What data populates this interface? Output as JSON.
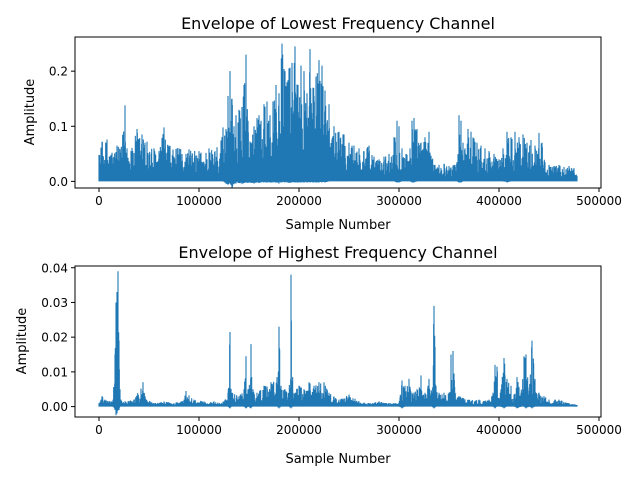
{
  "chart_data": [
    {
      "type": "line",
      "title": "Envelope of Lowest Frequency Channel",
      "xlabel": "Sample Number",
      "ylabel": "Amplitude",
      "xlim": [
        -24000,
        502000
      ],
      "ylim": [
        -0.012,
        0.262
      ],
      "xticks": [
        0,
        100000,
        200000,
        300000,
        400000,
        500000
      ],
      "xtick_labels": [
        "0",
        "100000",
        "200000",
        "300000",
        "400000",
        "500000"
      ],
      "yticks": [
        0.0,
        0.1,
        0.2
      ],
      "ytick_labels": [
        "0.0",
        "0.1",
        "0.2"
      ],
      "grid": false,
      "color": "#1f77b4",
      "series": [
        {
          "x": [
            0,
            3000,
            8000,
            13000,
            18000,
            22000,
            26000,
            28000,
            32000,
            38000,
            43000,
            48000,
            55000,
            60000,
            65000,
            70000,
            80000,
            90000,
            100000,
            110000,
            118000,
            124000,
            127000,
            129000,
            131000,
            133000,
            135000,
            137000,
            140000,
            143000,
            145000,
            147000,
            149000,
            152000,
            155000,
            158000,
            160000,
            162000,
            165000,
            168000,
            171000,
            174000,
            177000,
            180000,
            183000,
            186000,
            188000,
            190000,
            193000,
            196000,
            199000,
            202000,
            205000,
            208000,
            211000,
            214000,
            217000,
            220000,
            223000,
            226000,
            230000,
            235000,
            240000,
            245000,
            250000,
            255000,
            260000,
            265000,
            270000,
            275000,
            280000,
            285000,
            290000,
            295000,
            298000,
            300000,
            303000,
            307000,
            311000,
            313000,
            315000,
            318000,
            322000,
            326000,
            330000,
            335000,
            340000,
            345000,
            350000,
            355000,
            358000,
            360000,
            362000,
            364000,
            366000,
            369000,
            372000,
            375000,
            378000,
            382000,
            386000,
            390000,
            395000,
            400000,
            404000,
            408000,
            412000,
            416000,
            420000,
            424000,
            428000,
            432000,
            436000,
            440000,
            443000,
            446000,
            450000,
            455000,
            460000,
            465000,
            470000,
            475000,
            478000
          ],
          "upper": [
            0.048,
            0.072,
            0.076,
            0.052,
            0.065,
            0.058,
            0.138,
            0.06,
            0.055,
            0.095,
            0.085,
            0.072,
            0.06,
            0.055,
            0.098,
            0.065,
            0.06,
            0.058,
            0.055,
            0.06,
            0.062,
            0.098,
            0.095,
            0.155,
            0.2,
            0.15,
            0.1,
            0.12,
            0.13,
            0.135,
            0.175,
            0.23,
            0.11,
            0.07,
            0.1,
            0.115,
            0.12,
            0.11,
            0.14,
            0.145,
            0.12,
            0.145,
            0.175,
            0.16,
            0.25,
            0.2,
            0.18,
            0.205,
            0.215,
            0.245,
            0.175,
            0.21,
            0.2,
            0.16,
            0.24,
            0.17,
            0.19,
            0.22,
            0.21,
            0.165,
            0.14,
            0.1,
            0.09,
            0.085,
            0.07,
            0.065,
            0.06,
            0.055,
            0.065,
            0.045,
            0.04,
            0.045,
            0.05,
            0.08,
            0.11,
            0.1,
            0.06,
            0.05,
            0.06,
            0.11,
            0.115,
            0.095,
            0.07,
            0.08,
            0.09,
            0.03,
            0.03,
            0.032,
            0.028,
            0.03,
            0.035,
            0.12,
            0.11,
            0.07,
            0.06,
            0.095,
            0.09,
            0.078,
            0.07,
            0.065,
            0.06,
            0.055,
            0.05,
            0.04,
            0.06,
            0.09,
            0.08,
            0.09,
            0.08,
            0.085,
            0.07,
            0.075,
            0.065,
            0.088,
            0.07,
            0.035,
            0.03,
            0.028,
            0.03,
            0.026,
            0.028,
            0.024,
            0.01
          ],
          "lower": [
            0.0,
            0.0,
            0.0,
            0.0,
            0.0,
            0.0,
            0.0,
            0.0,
            0.0,
            0.0,
            0.0,
            0.0,
            0.0,
            0.0,
            0.0,
            0.0,
            0.0,
            0.0,
            0.0,
            0.0,
            0.0,
            0.0,
            -0.004,
            -0.006,
            -0.003,
            -0.012,
            -0.005,
            -0.004,
            -0.003,
            -0.005,
            -0.003,
            -0.002,
            -0.003,
            -0.003,
            -0.004,
            -0.002,
            -0.003,
            -0.002,
            -0.002,
            -0.002,
            -0.002,
            -0.002,
            -0.002,
            -0.004,
            -0.002,
            -0.002,
            -0.002,
            -0.003,
            -0.002,
            -0.002,
            -0.002,
            -0.002,
            -0.002,
            -0.002,
            -0.002,
            -0.002,
            -0.002,
            -0.002,
            -0.002,
            -0.002,
            0.0,
            0.0,
            0.0,
            0.0,
            0.0,
            0.0,
            0.0,
            0.0,
            0.0,
            0.0,
            0.0,
            0.0,
            0.0,
            0.0,
            -0.002,
            -0.002,
            0.0,
            0.0,
            0.0,
            -0.002,
            -0.002,
            0.0,
            0.0,
            0.0,
            0.0,
            0.0,
            0.0,
            0.0,
            0.0,
            0.0,
            0.0,
            -0.002,
            -0.002,
            0.0,
            0.0,
            0.0,
            0.0,
            0.0,
            0.0,
            0.0,
            0.0,
            0.0,
            0.0,
            0.0,
            0.0,
            -0.002,
            0.0,
            0.0,
            0.0,
            0.0,
            0.0,
            0.0,
            0.0,
            0.0,
            0.0,
            0.0,
            0.0,
            0.0,
            0.0,
            0.0,
            0.0,
            0.0,
            0.0
          ]
        }
      ]
    },
    {
      "type": "line",
      "title": "Envelope of Highest Frequency Channel",
      "xlabel": "Sample Number",
      "ylabel": "Amplitude",
      "xlim": [
        -24000,
        502000
      ],
      "ylim": [
        -0.003,
        0.0405
      ],
      "xticks": [
        0,
        100000,
        200000,
        300000,
        400000,
        500000
      ],
      "xtick_labels": [
        "0",
        "100000",
        "200000",
        "300000",
        "400000",
        "500000"
      ],
      "yticks": [
        0.0,
        0.01,
        0.02,
        0.03,
        0.04
      ],
      "ytick_labels": [
        "0.00",
        "0.01",
        "0.02",
        "0.03",
        "0.04"
      ],
      "grid": false,
      "color": "#1f77b4",
      "series": [
        {
          "x": [
            0,
            3000,
            6000,
            10000,
            14000,
            16000,
            17000,
            18000,
            19000,
            20000,
            21000,
            22000,
            26000,
            35000,
            44000,
            46000,
            55000,
            65000,
            75000,
            85000,
            87000,
            95000,
            105000,
            115000,
            125000,
            129000,
            131000,
            133000,
            140000,
            145000,
            147000,
            149000,
            152000,
            154000,
            158000,
            165000,
            172000,
            178000,
            180000,
            182000,
            186000,
            190000,
            192000,
            194000,
            200000,
            205000,
            210000,
            215000,
            220000,
            225000,
            230000,
            240000,
            250000,
            260000,
            270000,
            280000,
            290000,
            300000,
            303000,
            306000,
            310000,
            313000,
            318000,
            322000,
            326000,
            330000,
            333000,
            335000,
            337000,
            340000,
            345000,
            350000,
            352000,
            354000,
            356000,
            360000,
            370000,
            380000,
            390000,
            394000,
            396000,
            398000,
            402000,
            405000,
            408000,
            412000,
            415000,
            418000,
            422000,
            425000,
            427000,
            430000,
            433000,
            436000,
            440000,
            445000,
            450000,
            460000,
            470000,
            478000
          ],
          "upper": [
            0.001,
            0.003,
            0.002,
            0.0015,
            0.002,
            0.015,
            0.03,
            0.033,
            0.039,
            0.019,
            0.005,
            0.002,
            0.0015,
            0.002,
            0.007,
            0.003,
            0.001,
            0.0015,
            0.001,
            0.002,
            0.0045,
            0.002,
            0.0015,
            0.0015,
            0.0015,
            0.004,
            0.0215,
            0.004,
            0.003,
            0.005,
            0.0145,
            0.005,
            0.018,
            0.005,
            0.004,
            0.006,
            0.007,
            0.0085,
            0.023,
            0.006,
            0.005,
            0.004,
            0.038,
            0.004,
            0.006,
            0.005,
            0.007,
            0.006,
            0.007,
            0.007,
            0.004,
            0.002,
            0.0035,
            0.0015,
            0.001,
            0.0015,
            0.001,
            0.001,
            0.0075,
            0.006,
            0.008,
            0.004,
            0.005,
            0.009,
            0.004,
            0.008,
            0.004,
            0.029,
            0.006,
            0.004,
            0.004,
            0.004,
            0.015,
            0.016,
            0.004,
            0.003,
            0.002,
            0.002,
            0.002,
            0.004,
            0.012,
            0.0115,
            0.005,
            0.014,
            0.008,
            0.006,
            0.0035,
            0.0085,
            0.004,
            0.0145,
            0.015,
            0.0035,
            0.019,
            0.008,
            0.004,
            0.003,
            0.002,
            0.002,
            0.001,
            0.0005
          ],
          "lower": [
            0.0,
            0.0,
            0.0,
            0.0,
            0.0,
            -0.001,
            -0.0025,
            -0.002,
            -0.001,
            -0.001,
            0.0,
            0.0,
            0.0,
            0.0,
            0.0,
            0.0,
            0.0,
            0.0,
            0.0,
            0.0,
            0.0,
            0.0,
            0.0,
            0.0,
            0.0,
            0.0,
            -0.0005,
            0.0,
            0.0,
            0.0,
            -0.0005,
            0.0,
            -0.0005,
            0.0,
            0.0,
            0.0,
            0.0,
            0.0,
            -0.0005,
            0.0,
            0.0,
            0.0,
            -0.0005,
            0.0,
            0.0,
            0.0,
            0.0,
            0.0,
            0.0,
            0.0,
            0.0,
            0.0,
            0.0,
            0.0,
            0.0,
            0.0,
            0.0,
            0.0,
            -0.0005,
            0.0,
            0.0,
            0.0,
            0.0,
            0.0,
            0.0,
            0.0,
            0.0,
            -0.0005,
            0.0,
            0.0,
            0.0,
            0.0,
            0.0,
            0.0,
            0.0,
            0.0,
            0.0,
            0.0,
            0.0,
            0.0,
            -0.0005,
            0.0,
            0.0,
            -0.0005,
            0.0,
            0.0,
            0.0,
            -0.0005,
            0.0,
            0.0,
            -0.0005,
            0.0,
            -0.0005,
            0.0,
            0.0,
            0.0,
            0.0,
            0.0,
            0.0,
            0.0
          ]
        }
      ]
    }
  ]
}
